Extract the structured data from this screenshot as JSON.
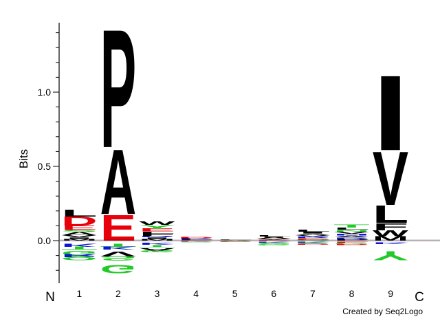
{
  "chart_data": {
    "type": "sequence-logo",
    "ylabel": "Bits",
    "ylim": [
      -0.3,
      1.45
    ],
    "yticks": [
      {
        "value": 0.0,
        "label": "0.0"
      },
      {
        "value": 0.5,
        "label": "0.5"
      },
      {
        "value": 1.0,
        "label": "1.0"
      }
    ],
    "n_terminus_label": "N",
    "c_terminus_label": "C",
    "positions": [
      "1",
      "2",
      "3",
      "4",
      "5",
      "6",
      "7",
      "8",
      "9"
    ],
    "colors": {
      "black": "#000000",
      "red": "#e8000b",
      "green": "#22c928",
      "blue": "#0a14d4",
      "gray": "#7f7f7f"
    },
    "columns": [
      {
        "position": "1",
        "positive": [
          {
            "letter": "M",
            "bits": 0.012,
            "color": "black"
          },
          {
            "letter": "I",
            "bits": 0.01,
            "color": "black"
          },
          {
            "letter": "V",
            "bits": 0.015,
            "color": "black"
          },
          {
            "letter": "A",
            "bits": 0.02,
            "color": "black"
          },
          {
            "letter": "S",
            "bits": 0.015,
            "color": "green"
          },
          {
            "letter": "E",
            "bits": 0.03,
            "color": "red"
          },
          {
            "letter": "D",
            "bits": 0.06,
            "color": "red"
          },
          {
            "letter": "L",
            "bits": 0.05,
            "color": "black"
          }
        ],
        "negative": [
          {
            "letter": "K",
            "bits": 0.02,
            "color": "blue"
          },
          {
            "letter": "T",
            "bits": 0.02,
            "color": "green"
          },
          {
            "letter": "G",
            "bits": 0.03,
            "color": "green"
          },
          {
            "letter": "R",
            "bits": 0.02,
            "color": "blue"
          },
          {
            "letter": "Q",
            "bits": 0.02,
            "color": "green"
          }
        ]
      },
      {
        "position": "2",
        "positive": [
          {
            "letter": "E",
            "bits": 0.18,
            "color": "red"
          },
          {
            "letter": "A",
            "bits": 0.45,
            "color": "black"
          },
          {
            "letter": "P",
            "bits": 0.82,
            "color": "black"
          }
        ],
        "negative": [
          {
            "letter": "T",
            "bits": 0.02,
            "color": "green"
          },
          {
            "letter": "K",
            "bits": 0.02,
            "color": "blue"
          },
          {
            "letter": "V",
            "bits": 0.035,
            "color": "black"
          },
          {
            "letter": "S",
            "bits": 0.03,
            "color": "green"
          },
          {
            "letter": "G",
            "bits": 0.06,
            "color": "green"
          }
        ]
      },
      {
        "position": "3",
        "positive": [
          {
            "letter": "M",
            "bits": 0.012,
            "color": "black"
          },
          {
            "letter": "I",
            "bits": 0.01,
            "color": "black"
          },
          {
            "letter": "R",
            "bits": 0.01,
            "color": "blue"
          },
          {
            "letter": "F",
            "bits": 0.015,
            "color": "black"
          },
          {
            "letter": "L",
            "bits": 0.015,
            "color": "black"
          },
          {
            "letter": "E",
            "bits": 0.02,
            "color": "red"
          },
          {
            "letter": "Y",
            "bits": 0.025,
            "color": "green"
          },
          {
            "letter": "W",
            "bits": 0.025,
            "color": "black"
          }
        ],
        "negative": [
          {
            "letter": "K",
            "bits": 0.015,
            "color": "blue"
          },
          {
            "letter": "T",
            "bits": 0.015,
            "color": "green"
          },
          {
            "letter": "A",
            "bits": 0.02,
            "color": "black"
          },
          {
            "letter": "G",
            "bits": 0.015,
            "color": "green"
          }
        ]
      },
      {
        "position": "4",
        "positive": [
          {
            "letter": "E",
            "bits": 0.006,
            "color": "red"
          },
          {
            "letter": "L",
            "bits": 0.006,
            "color": "black"
          },
          {
            "letter": "R",
            "bits": 0.006,
            "color": "blue"
          },
          {
            "letter": "D",
            "bits": 0.005,
            "color": "red"
          }
        ],
        "negative": [
          {
            "letter": "K",
            "bits": 0.004,
            "color": "blue"
          },
          {
            "letter": "G",
            "bits": 0.004,
            "color": "green"
          },
          {
            "letter": "S",
            "bits": 0.004,
            "color": "green"
          }
        ]
      },
      {
        "position": "5",
        "positive": [
          {
            "letter": "V",
            "bits": 0.003,
            "color": "black"
          },
          {
            "letter": "A",
            "bits": 0.003,
            "color": "black"
          },
          {
            "letter": "L",
            "bits": 0.004,
            "color": "black"
          }
        ],
        "negative": [
          {
            "letter": "S",
            "bits": 0.004,
            "color": "green"
          },
          {
            "letter": "E",
            "bits": 0.003,
            "color": "red"
          }
        ]
      },
      {
        "position": "6",
        "positive": [
          {
            "letter": "E",
            "bits": 0.006,
            "color": "red"
          },
          {
            "letter": "V",
            "bits": 0.007,
            "color": "black"
          },
          {
            "letter": "A",
            "bits": 0.008,
            "color": "black"
          },
          {
            "letter": "I",
            "bits": 0.006,
            "color": "black"
          },
          {
            "letter": "L",
            "bits": 0.01,
            "color": "black"
          }
        ],
        "negative": [
          {
            "letter": "K",
            "bits": 0.006,
            "color": "blue"
          },
          {
            "letter": "S",
            "bits": 0.008,
            "color": "green"
          },
          {
            "letter": "G",
            "bits": 0.01,
            "color": "green"
          }
        ]
      },
      {
        "position": "7",
        "positive": [
          {
            "letter": "Q",
            "bits": 0.008,
            "color": "green"
          },
          {
            "letter": "E",
            "bits": 0.01,
            "color": "red"
          },
          {
            "letter": "R",
            "bits": 0.01,
            "color": "blue"
          },
          {
            "letter": "V",
            "bits": 0.01,
            "color": "black"
          },
          {
            "letter": "A",
            "bits": 0.01,
            "color": "black"
          },
          {
            "letter": "I",
            "bits": 0.012,
            "color": "black"
          },
          {
            "letter": "L",
            "bits": 0.015,
            "color": "black"
          }
        ],
        "negative": [
          {
            "letter": "K",
            "bits": 0.006,
            "color": "blue"
          },
          {
            "letter": "S",
            "bits": 0.008,
            "color": "green"
          },
          {
            "letter": "D",
            "bits": 0.006,
            "color": "red"
          }
        ]
      },
      {
        "position": "8",
        "positive": [
          {
            "letter": "P",
            "bits": 0.01,
            "color": "black"
          },
          {
            "letter": "R",
            "bits": 0.012,
            "color": "blue"
          },
          {
            "letter": "A",
            "bits": 0.012,
            "color": "black"
          },
          {
            "letter": "H",
            "bits": 0.012,
            "color": "blue"
          },
          {
            "letter": "V",
            "bits": 0.015,
            "color": "black"
          },
          {
            "letter": "N",
            "bits": 0.012,
            "color": "green"
          },
          {
            "letter": "L",
            "bits": 0.015,
            "color": "black"
          },
          {
            "letter": "T",
            "bits": 0.02,
            "color": "green"
          }
        ],
        "negative": [
          {
            "letter": "E",
            "bits": 0.008,
            "color": "red"
          },
          {
            "letter": "G",
            "bits": 0.008,
            "color": "green"
          },
          {
            "letter": "D",
            "bits": 0.006,
            "color": "red"
          }
        ]
      },
      {
        "position": "9",
        "positive": [
          {
            "letter": "M",
            "bits": 0.03,
            "color": "black"
          },
          {
            "letter": "W",
            "bits": 0.04,
            "color": "black"
          },
          {
            "letter": "F",
            "bits": 0.05,
            "color": "black"
          },
          {
            "letter": "L",
            "bits": 0.12,
            "color": "black"
          },
          {
            "letter": "V",
            "bits": 0.37,
            "color": "black"
          },
          {
            "letter": "I",
            "bits": 0.52,
            "color": "black"
          }
        ],
        "negative": [
          {
            "letter": "K",
            "bits": 0.012,
            "color": "blue"
          },
          {
            "letter": "Y",
            "bits": 0.06,
            "color": "green"
          }
        ]
      }
    ],
    "credit": "Created by Seq2Logo"
  }
}
